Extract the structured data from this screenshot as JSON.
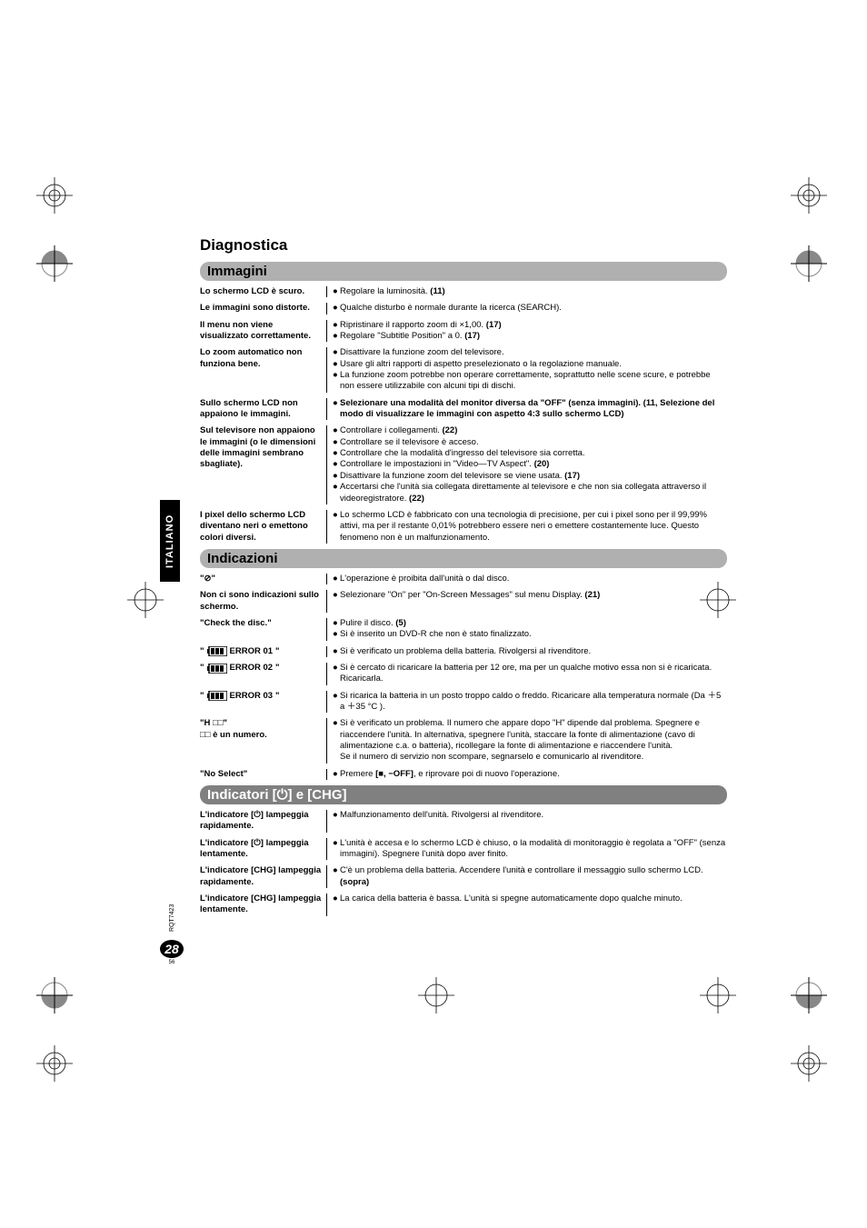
{
  "page": {
    "title": "Diagnostica",
    "rqt": "RQT7423",
    "number": "28",
    "subnumber": "56",
    "sidebar": "ITALIANO"
  },
  "sections": {
    "immagini": {
      "title": "Immagini"
    },
    "indicazioni": {
      "title": "Indicazioni"
    },
    "indicatori": {
      "title": "Indicatori [⏻] e [CHG]"
    }
  },
  "immagini_rows": [
    {
      "label": "Lo schermo LCD è scuro.",
      "items": [
        {
          "text": "Regolare la luminosità.",
          "ref": "(11)"
        }
      ]
    },
    {
      "label": "Le immagini sono distorte.",
      "items": [
        {
          "text": "Qualche disturbo è normale durante la ricerca (SEARCH)."
        }
      ]
    },
    {
      "label": "Il menu non viene visualizzato correttamente.",
      "items": [
        {
          "text": "Ripristinare il rapporto zoom di ×1,00.",
          "ref": "(17)"
        },
        {
          "text": "Regolare \"Subtitle Position\" a 0.",
          "ref": "(17)"
        }
      ]
    },
    {
      "label": "Lo zoom automatico non funziona bene.",
      "items": [
        {
          "text": "Disattivare la funzione zoom del televisore."
        },
        {
          "text": "Usare gli altri rapporti di aspetto preselezionato o la regolazione manuale."
        },
        {
          "text": "La funzione zoom potrebbe non operare correttamente, soprattutto nelle scene scure, e potrebbe non essere utilizzabile con alcuni tipi di dischi."
        }
      ]
    },
    {
      "label": "Sullo schermo LCD non appaiono le immagini.",
      "items": [
        {
          "text": "Selezionare una modalità del monitor diversa da \"OFF\" (senza immagini).",
          "ref": "(11, Selezione del modo di visualizzare le immagini con aspetto 4:3 sullo schermo LCD)",
          "allbold": true
        }
      ]
    },
    {
      "label": "Sul televisore non appaiono le immagini (o le dimensioni delle immagini sembrano sbagliate).",
      "items": [
        {
          "text": "Controllare i collegamenti.",
          "ref": "(22)"
        },
        {
          "text": "Controllare se il televisore è acceso."
        },
        {
          "text": "Controllare che la modalità d'ingresso del televisore sia corretta."
        },
        {
          "text": "Controllare le impostazioni in \"Video—TV Aspect\".",
          "ref": "(20)"
        },
        {
          "text": "Disattivare la funzione zoom del televisore se viene usata.",
          "ref": "(17)"
        },
        {
          "text": "Accertarsi che l'unità sia collegata direttamente al televisore e che non sia collegata attraverso il videoregistratore.",
          "ref": "(22)"
        }
      ]
    },
    {
      "label": "I pixel dello schermo LCD diventano neri o emettono colori diversi.",
      "items": [
        {
          "text": "Lo schermo LCD è fabbricato con una tecnologia di precisione, per cui i pixel sono per il 99,99% attivi, ma per il restante 0,01% potrebbero essere neri o emettere costantemente luce. Questo fenomeno non è un malfunzionamento."
        }
      ]
    }
  ],
  "indicazioni_rows": [
    {
      "label": "\"⊘\"",
      "items": [
        {
          "text": "L'operazione è proibita dall'unità o dal disco."
        }
      ]
    },
    {
      "label": "Non ci sono indicazioni sullo schermo.",
      "items": [
        {
          "text": "Selezionare \"On\" per \"On-Screen Messages\" sul menu Display.",
          "ref": "(21)"
        }
      ]
    },
    {
      "label": "\"Check the disc.\"",
      "items": [
        {
          "text": "Pulire il disco.",
          "ref": "(5)"
        },
        {
          "text": "Si è inserito un DVD-R che non è stato finalizzato."
        }
      ]
    },
    {
      "label": "ERROR 01",
      "battery": true,
      "items": [
        {
          "text": "Si è verificato un problema della batteria. Rivolgersi al rivenditore."
        }
      ]
    },
    {
      "label": "ERROR 02",
      "battery": true,
      "items": [
        {
          "text": "Si è cercato di ricaricare la batteria per 12 ore, ma per un qualche motivo essa non si è ricaricata. Ricaricarla."
        }
      ]
    },
    {
      "label": "ERROR 03",
      "battery": true,
      "items": [
        {
          "text": "Si ricarica la batteria in un posto troppo caldo o freddo. Ricaricare alla temperatura normale (Da ＋5 a ＋35 °C )."
        }
      ]
    },
    {
      "label": "\"H □□\"\n□□ è un numero.",
      "items": [
        {
          "text": "Si è verificato un problema. Il numero che appare dopo \"H\" dipende dal problema. Spegnere e riaccendere l'unità. In alternativa, spegnere l'unità, staccare la fonte di alimentazione (cavo di alimentazione c.a. o batteria), ricollegare la fonte di alimentazione e riaccendere l'unità.\nSe il numero di servizio non scompare, segnarselo e comunicarlo al rivenditore."
        }
      ]
    },
    {
      "label": "\"No Select\"",
      "items": [
        {
          "text": "Premere [■, −OFF], e riprovare poi di nuovo l'operazione.",
          "boldpart": "[■, −OFF]"
        }
      ]
    }
  ],
  "indicatori_rows": [
    {
      "label": "L'indicatore [⏻] lampeggia rapidamente.",
      "items": [
        {
          "text": "Malfunzionamento dell'unità. Rivolgersi al rivenditore."
        }
      ]
    },
    {
      "label": "L'indicatore [⏻] lampeggia lentamente.",
      "items": [
        {
          "text": "L'unità è accesa e lo schermo LCD è chiuso, o la modalità di monitoraggio è regolata a \"OFF\" (senza immagini). Spegnere l'unità dopo aver finito."
        }
      ]
    },
    {
      "label": "L'indicatore [CHG] lampeggia rapidamente.",
      "items": [
        {
          "text": "C'è un problema della batteria. Accendere l'unità e controllare il messaggio sullo schermo LCD.",
          "ref": "(sopra)"
        }
      ]
    },
    {
      "label": "L'indicatore [CHG] lampeggia lentamente.",
      "items": [
        {
          "text": "La carica della batteria è bassa. L'unità si spegne automaticamente dopo qualche minuto."
        }
      ]
    }
  ],
  "colors": {
    "header_bg": "#b0b0b0",
    "header_dark_bg": "#808080",
    "text": "#000000",
    "bg": "#ffffff"
  }
}
